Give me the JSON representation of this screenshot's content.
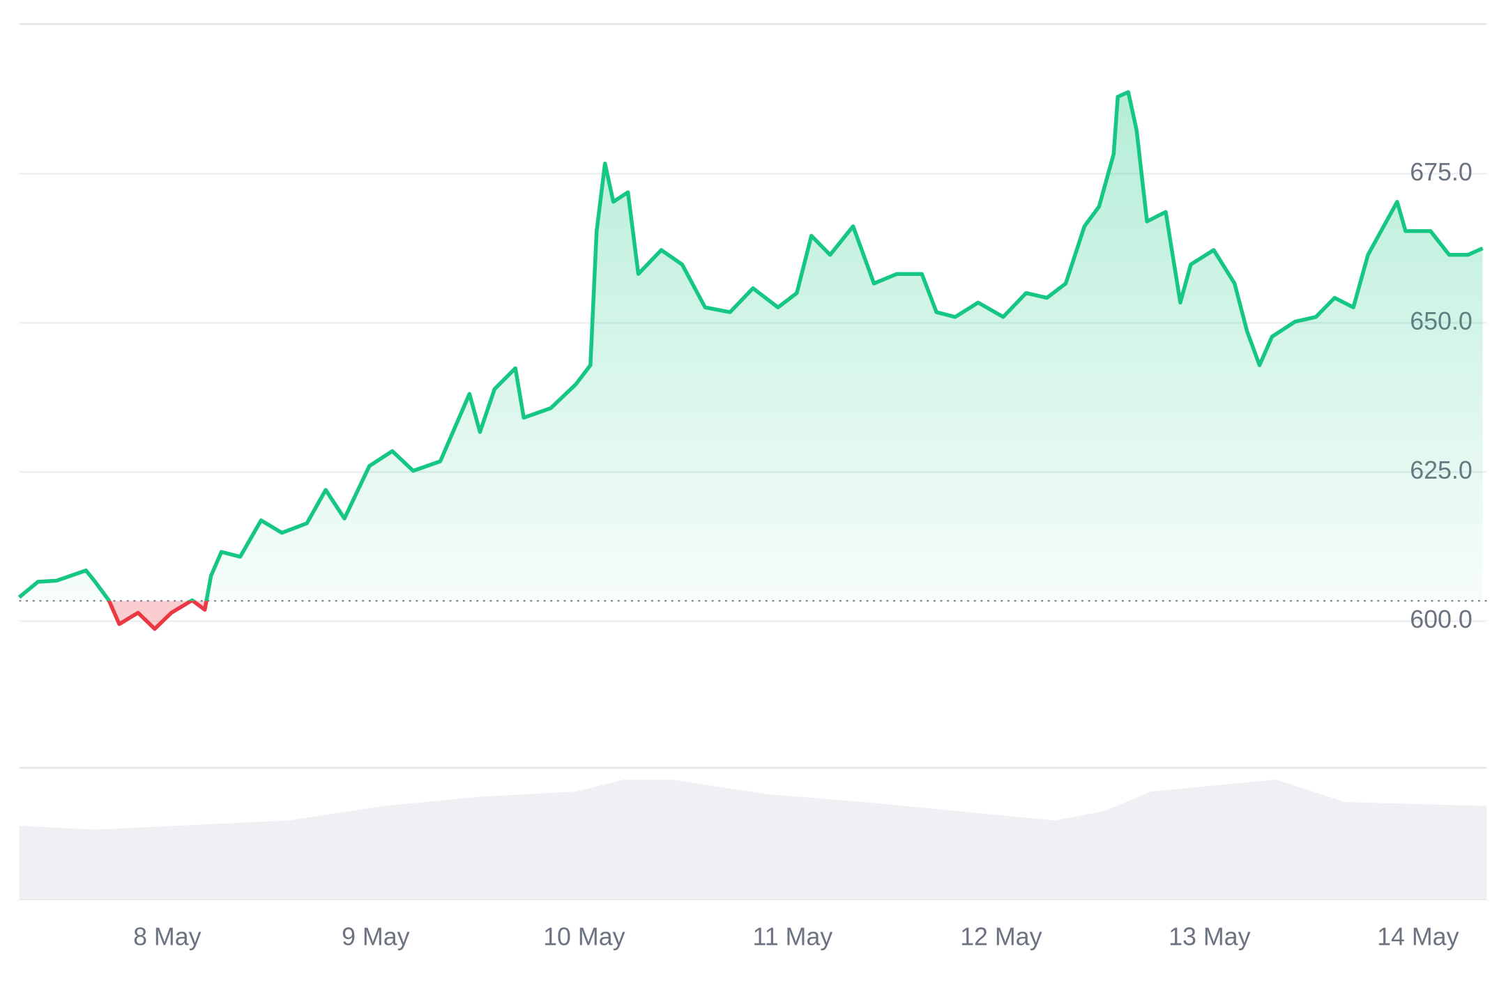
{
  "chart_data": {
    "type": "line",
    "x": [
      7.29,
      7.38,
      7.47,
      7.61,
      7.65,
      7.72,
      7.77,
      7.86,
      7.94,
      8.02,
      8.12,
      8.18,
      8.21,
      8.26,
      8.35,
      8.45,
      8.55,
      8.67,
      8.76,
      8.85,
      8.97,
      9.08,
      9.18,
      9.31,
      9.45,
      9.5,
      9.57,
      9.67,
      9.71,
      9.84,
      9.96,
      10.03,
      10.06,
      10.1,
      10.14,
      10.21,
      10.26,
      10.37,
      10.47,
      10.58,
      10.7,
      10.81,
      10.93,
      11.02,
      11.09,
      11.18,
      11.29,
      11.39,
      11.5,
      11.62,
      11.69,
      11.78,
      11.89,
      12.01,
      12.12,
      12.22,
      12.31,
      12.4,
      12.47,
      12.54,
      12.56,
      12.61,
      12.65,
      12.7,
      12.79,
      12.86,
      12.91,
      13.02,
      13.12,
      13.18,
      13.24,
      13.3,
      13.41,
      13.51,
      13.6,
      13.69,
      13.76,
      13.9,
      13.94,
      14.06,
      14.15,
      14.24,
      14.31
    ],
    "values": [
      604.0,
      606.6,
      606.8,
      608.5,
      606.8,
      603.5,
      599.5,
      601.4,
      598.7,
      601.4,
      603.5,
      601.9,
      607.6,
      611.6,
      610.8,
      616.9,
      614.8,
      616.4,
      622.0,
      617.2,
      626.0,
      628.5,
      625.2,
      626.8,
      638.1,
      631.7,
      638.9,
      642.4,
      634.1,
      635.7,
      639.7,
      642.9,
      665.4,
      676.7,
      670.3,
      671.9,
      658.2,
      662.2,
      659.8,
      652.6,
      651.8,
      655.8,
      652.6,
      655.0,
      664.6,
      661.4,
      666.2,
      656.6,
      658.2,
      658.2,
      651.8,
      651.0,
      653.4,
      651.0,
      655.0,
      654.2,
      656.6,
      666.2,
      669.5,
      678.3,
      687.9,
      688.7,
      682.3,
      667.0,
      668.6,
      653.4,
      659.8,
      662.2,
      656.6,
      648.6,
      642.9,
      647.7,
      650.2,
      651.0,
      654.2,
      652.6,
      661.4,
      670.3,
      665.4,
      665.4,
      661.4,
      661.4,
      662.5
    ],
    "color": "#16c784",
    "below_color": "#ea3943",
    "baseline": 603.4,
    "xlim": [
      7.29,
      14.33
    ],
    "ylim": [
      575.4,
      700.1
    ],
    "yticks": [
      {
        "value": 600,
        "label": "600.0"
      },
      {
        "value": 625,
        "label": "625.0"
      },
      {
        "value": 650,
        "label": "650.0"
      },
      {
        "value": 675,
        "label": "675.0"
      }
    ],
    "xticks": [
      {
        "value": 8,
        "label": "8 May"
      },
      {
        "value": 9,
        "label": "9 May"
      },
      {
        "value": 10,
        "label": "10 May"
      },
      {
        "value": 11,
        "label": "11 May"
      },
      {
        "value": 12,
        "label": "12 May"
      },
      {
        "value": 13,
        "label": "13 May"
      },
      {
        "value": 14,
        "label": "14 May"
      }
    ],
    "grid": true,
    "volume": {
      "x": [
        7.29,
        7.65,
        8.58,
        9.04,
        9.5,
        9.96,
        10.19,
        10.42,
        10.88,
        11.34,
        11.8,
        12.26,
        12.49,
        12.72,
        13.18,
        13.32,
        13.65,
        14.33
      ],
      "values": [
        56,
        53,
        60,
        71,
        78,
        82,
        91,
        91,
        80,
        74,
        67,
        60,
        67,
        82,
        89,
        91,
        74,
        71
      ],
      "vlim": [
        0,
        100
      ],
      "color": "#eef0f3"
    }
  }
}
